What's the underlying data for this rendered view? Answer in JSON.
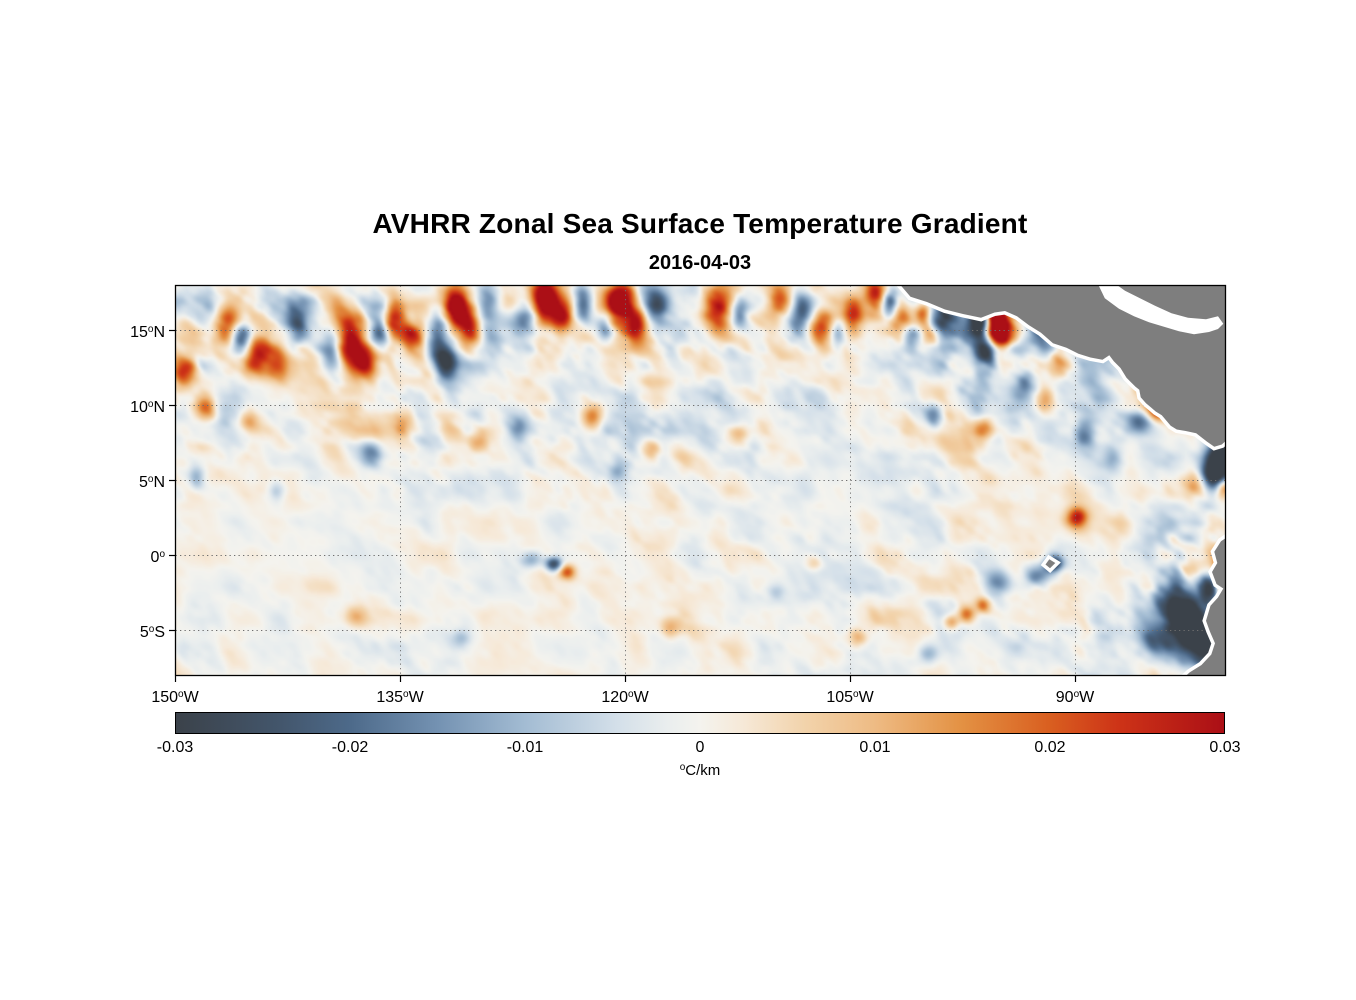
{
  "title": "AVHRR Zonal Sea Surface Temperature Gradient",
  "subtitle": "2016-04-03",
  "chart_data": {
    "type": "heatmap",
    "title": "AVHRR Zonal Sea Surface Temperature Gradient",
    "subtitle": "2016-04-03",
    "colorbar_unit_sup": "o",
    "colorbar_unit_text": "C/km",
    "value_range": [
      -0.03,
      0.03
    ],
    "colorbar_ticks": [
      "-0.03",
      "-0.02",
      "-0.01",
      "0",
      "0.01",
      "0.02",
      "0.03"
    ],
    "axes": {
      "lon_min": -150,
      "lon_max": -80,
      "lat_min": -8,
      "lat_max": 18
    },
    "x_ticks": [
      {
        "deg": "150",
        "sup": "o",
        "hem": "W",
        "lon": -150
      },
      {
        "deg": "135",
        "sup": "o",
        "hem": "W",
        "lon": -135
      },
      {
        "deg": "120",
        "sup": "o",
        "hem": "W",
        "lon": -120
      },
      {
        "deg": "105",
        "sup": "o",
        "hem": "W",
        "lon": -105
      },
      {
        "deg": "90",
        "sup": "o",
        "hem": "W",
        "lon": -90
      }
    ],
    "y_ticks": [
      {
        "deg": "15",
        "sup": "o",
        "hem": "N",
        "lat": 15
      },
      {
        "deg": "10",
        "sup": "o",
        "hem": "N",
        "lat": 10
      },
      {
        "deg": "5",
        "sup": "o",
        "hem": "N",
        "lat": 5
      },
      {
        "deg": "0",
        "sup": "o",
        "hem": "",
        "lat": 0
      },
      {
        "deg": "5",
        "sup": "o",
        "hem": "S",
        "lat": -5
      }
    ],
    "grid": true,
    "grid_color": "#6e6e6e",
    "frame_color": "#000000",
    "land_color": "#7e7e7e",
    "nodata_color": "#ffffff",
    "colormap": [
      {
        "t": 0.0,
        "c": "#3b424a"
      },
      {
        "t": 0.1,
        "c": "#43566c"
      },
      {
        "t": 0.1667,
        "c": "#4d6a8a"
      },
      {
        "t": 0.25,
        "c": "#7492b2"
      },
      {
        "t": 0.3333,
        "c": "#a3bcd3"
      },
      {
        "t": 0.42,
        "c": "#d3dfe9"
      },
      {
        "t": 0.47,
        "c": "#eaeeee"
      },
      {
        "t": 0.5,
        "c": "#f4f3ee"
      },
      {
        "t": 0.54,
        "c": "#f6e9d8"
      },
      {
        "t": 0.6,
        "c": "#f2d3ab"
      },
      {
        "t": 0.6667,
        "c": "#eebb84"
      },
      {
        "t": 0.75,
        "c": "#e39143"
      },
      {
        "t": 0.8333,
        "c": "#d95f20"
      },
      {
        "t": 0.9,
        "c": "#cd3317"
      },
      {
        "t": 1.0,
        "c": "#ab0f16"
      }
    ],
    "noise": {
      "seed": 11,
      "base_amp": 0.3,
      "band15_amp": 0.75,
      "band8_amp": 0.25,
      "value_scale": 0.022,
      "shear": 0.42
    },
    "features": [
      [
        -146.6,
        15.3,
        0.6,
        1.0,
        0.026
      ],
      [
        -145.6,
        14.4,
        0.5,
        0.9,
        -0.022
      ],
      [
        -144.6,
        13.6,
        0.7,
        1.1,
        0.03
      ],
      [
        -143.2,
        12.6,
        0.6,
        0.8,
        0.022
      ],
      [
        -141.9,
        15.6,
        0.6,
        1.0,
        -0.018
      ],
      [
        -139.5,
        13.5,
        0.5,
        0.9,
        -0.02
      ],
      [
        -138.4,
        14.3,
        0.7,
        1.2,
        0.034
      ],
      [
        -137.3,
        12.9,
        0.6,
        0.8,
        0.024
      ],
      [
        -136.4,
        14.9,
        0.5,
        0.9,
        -0.022
      ],
      [
        -135.4,
        15.9,
        0.6,
        1.0,
        0.028
      ],
      [
        -134.2,
        14.6,
        0.5,
        0.8,
        0.02
      ],
      [
        -132.4,
        14.9,
        0.6,
        1.2,
        -0.028
      ],
      [
        -131.9,
        13.0,
        0.5,
        0.9,
        -0.022
      ],
      [
        -131.3,
        16.4,
        0.6,
        1.1,
        0.038
      ],
      [
        -130.3,
        15.0,
        0.5,
        0.9,
        0.026
      ],
      [
        -129.2,
        16.9,
        0.5,
        0.9,
        -0.018
      ],
      [
        -126.6,
        16.0,
        0.5,
        0.9,
        -0.02
      ],
      [
        -125.4,
        17.2,
        0.7,
        1.0,
        0.042
      ],
      [
        -124.2,
        16.0,
        0.5,
        0.8,
        0.022
      ],
      [
        -122.9,
        16.8,
        0.5,
        0.9,
        -0.026
      ],
      [
        -121.4,
        15.3,
        0.4,
        0.8,
        -0.018
      ],
      [
        -120.4,
        17.0,
        0.7,
        1.0,
        0.04
      ],
      [
        -119.2,
        15.6,
        0.5,
        0.8,
        0.024
      ],
      [
        -117.9,
        16.9,
        0.6,
        0.9,
        -0.022
      ],
      [
        -113.9,
        16.6,
        0.7,
        1.0,
        0.03
      ],
      [
        -112.4,
        16.2,
        0.5,
        0.9,
        -0.02
      ],
      [
        -109.8,
        16.9,
        0.6,
        0.9,
        0.026
      ],
      [
        -108.4,
        16.1,
        0.5,
        0.8,
        -0.018
      ],
      [
        -107.0,
        15.3,
        0.6,
        0.9,
        0.028
      ],
      [
        -105.9,
        14.9,
        0.4,
        0.7,
        -0.016
      ],
      [
        -104.8,
        16.3,
        0.5,
        0.8,
        0.022
      ],
      [
        -103.4,
        17.4,
        0.5,
        0.8,
        0.03
      ],
      [
        -102.4,
        16.8,
        0.4,
        0.7,
        -0.02
      ],
      [
        -101.8,
        15.9,
        0.5,
        0.7,
        0.018
      ],
      [
        -100.9,
        14.6,
        0.5,
        0.7,
        -0.02
      ],
      [
        -100.2,
        16.2,
        0.4,
        0.5,
        0.025
      ],
      [
        -98.9,
        15.9,
        0.5,
        0.6,
        -0.016
      ],
      [
        -95.4,
        16.0,
        0.45,
        0.8,
        0.045
      ],
      [
        -95.1,
        14.6,
        0.5,
        0.9,
        0.042
      ],
      [
        -96.5,
        15.6,
        0.5,
        0.9,
        -0.035
      ],
      [
        -95.9,
        13.5,
        0.6,
        0.7,
        -0.022
      ],
      [
        -94.2,
        15.0,
        0.5,
        0.6,
        0.02
      ],
      [
        -149.3,
        12.4,
        0.6,
        0.8,
        0.024
      ],
      [
        -148.0,
        10.0,
        0.5,
        0.7,
        0.02
      ],
      [
        -145.2,
        9.0,
        0.5,
        0.6,
        0.014
      ],
      [
        -134.8,
        8.8,
        0.5,
        0.6,
        0.016
      ],
      [
        -129.8,
        7.6,
        0.5,
        0.5,
        0.014
      ],
      [
        -127.2,
        8.6,
        0.5,
        0.6,
        -0.014
      ],
      [
        -122.2,
        9.3,
        0.5,
        0.6,
        0.018
      ],
      [
        -120.6,
        5.6,
        0.5,
        0.5,
        -0.012
      ],
      [
        -118.3,
        7.2,
        0.5,
        0.5,
        0.014
      ],
      [
        -112.5,
        8.0,
        0.5,
        0.5,
        0.012
      ],
      [
        -99.5,
        9.3,
        0.5,
        0.6,
        -0.016
      ],
      [
        -96.1,
        8.5,
        0.5,
        0.6,
        0.022
      ],
      [
        -92.0,
        10.5,
        0.5,
        0.6,
        0.016
      ],
      [
        -91.2,
        12.9,
        0.5,
        0.7,
        0.02
      ],
      [
        -93.5,
        11.5,
        0.5,
        0.6,
        -0.014
      ],
      [
        -89.4,
        8.2,
        0.5,
        0.7,
        -0.018
      ],
      [
        -87.5,
        6.5,
        0.5,
        0.6,
        -0.012
      ],
      [
        -136.9,
        7.0,
        0.5,
        0.5,
        -0.012
      ],
      [
        -148.6,
        5.2,
        0.4,
        0.6,
        -0.014
      ],
      [
        -143.3,
        4.3,
        0.4,
        0.5,
        -0.01
      ],
      [
        -84.6,
        9.8,
        0.5,
        0.6,
        0.028
      ],
      [
        -85.8,
        9.0,
        0.6,
        0.5,
        -0.018
      ],
      [
        -80.4,
        6.4,
        0.7,
        0.9,
        -0.04
      ],
      [
        -80.9,
        5.3,
        0.6,
        0.7,
        -0.03
      ],
      [
        -80.3,
        7.6,
        0.4,
        0.5,
        -0.025
      ],
      [
        -82.0,
        4.9,
        0.6,
        0.6,
        0.018
      ],
      [
        -124.8,
        -0.55,
        0.4,
        0.35,
        -0.028
      ],
      [
        -123.9,
        -1.05,
        0.4,
        0.35,
        0.022
      ],
      [
        -126.3,
        -0.3,
        0.5,
        0.4,
        -0.012
      ],
      [
        -91.5,
        -0.55,
        0.45,
        0.4,
        -0.03
      ],
      [
        -92.6,
        -1.4,
        0.6,
        0.5,
        -0.018
      ],
      [
        -95.3,
        -1.8,
        0.7,
        0.6,
        -0.02
      ],
      [
        -89.9,
        2.6,
        0.5,
        0.5,
        0.026
      ],
      [
        -97.3,
        -3.9,
        0.4,
        0.4,
        0.02
      ],
      [
        -96.2,
        -3.3,
        0.35,
        0.35,
        0.018
      ],
      [
        -98.3,
        -4.4,
        0.35,
        0.35,
        0.016
      ],
      [
        -82.6,
        -4.6,
        1.3,
        1.2,
        -0.038
      ],
      [
        -81.3,
        -6.3,
        0.9,
        1.0,
        -0.034
      ],
      [
        -83.8,
        -3.1,
        1.0,
        0.9,
        -0.02
      ],
      [
        -81.0,
        -2.2,
        0.8,
        0.8,
        -0.022
      ],
      [
        -84.9,
        -5.6,
        0.8,
        0.8,
        -0.016
      ],
      [
        -80.15,
        -2.9,
        0.35,
        1.1,
        0.045
      ],
      [
        -79.95,
        -4.3,
        0.3,
        0.5,
        0.05
      ],
      [
        -80.3,
        -0.9,
        0.3,
        0.6,
        0.03
      ],
      [
        -80.15,
        4.6,
        0.35,
        0.45,
        0.022
      ],
      [
        -138.0,
        -4.0,
        0.6,
        0.5,
        0.01
      ],
      [
        -131.0,
        -5.5,
        0.5,
        0.5,
        -0.01
      ],
      [
        -117.0,
        -4.8,
        0.5,
        0.5,
        0.012
      ],
      [
        -110.0,
        -2.5,
        0.5,
        0.5,
        -0.01
      ],
      [
        -104.5,
        -5.4,
        0.5,
        0.5,
        0.012
      ],
      [
        -99.8,
        -6.5,
        0.5,
        0.5,
        -0.012
      ],
      [
        -107.5,
        -0.5,
        0.4,
        0.4,
        0.01
      ]
    ],
    "land_polygons": [
      [
        [
          -101.9,
          18.3
        ],
        [
          -101.0,
          17.25
        ],
        [
          -99.9,
          16.9
        ],
        [
          -98.7,
          16.4
        ],
        [
          -97.5,
          16.1
        ],
        [
          -96.3,
          15.85
        ],
        [
          -95.4,
          16.2
        ],
        [
          -94.7,
          16.3
        ],
        [
          -93.9,
          15.95
        ],
        [
          -93.1,
          15.35
        ],
        [
          -92.3,
          14.85
        ],
        [
          -91.5,
          14.15
        ],
        [
          -90.6,
          13.85
        ],
        [
          -89.8,
          13.45
        ],
        [
          -89.0,
          13.2
        ],
        [
          -88.2,
          13.05
        ],
        [
          -87.75,
          13.35
        ],
        [
          -87.45,
          12.95
        ],
        [
          -87.0,
          12.5
        ],
        [
          -86.6,
          11.85
        ],
        [
          -86.0,
          11.25
        ],
        [
          -85.75,
          11.05
        ],
        [
          -85.65,
          10.55
        ],
        [
          -85.3,
          10.15
        ],
        [
          -85.0,
          9.9
        ],
        [
          -84.65,
          9.6
        ],
        [
          -84.25,
          9.35
        ],
        [
          -83.65,
          8.65
        ],
        [
          -83.25,
          8.4
        ],
        [
          -82.65,
          8.3
        ],
        [
          -81.95,
          8.15
        ],
        [
          -81.25,
          7.6
        ],
        [
          -80.75,
          7.25
        ],
        [
          -80.25,
          7.4
        ],
        [
          -79.7,
          7.9
        ],
        [
          -79.7,
          18.3
        ]
      ],
      [
        [
          -79.7,
          1.35
        ],
        [
          -80.3,
          0.95
        ],
        [
          -80.75,
          0.25
        ],
        [
          -80.55,
          -0.5
        ],
        [
          -80.9,
          -1.1
        ],
        [
          -80.6,
          -1.9
        ],
        [
          -80.15,
          -2.2
        ],
        [
          -80.5,
          -2.8
        ],
        [
          -81.0,
          -3.35
        ],
        [
          -81.3,
          -4.35
        ],
        [
          -81.05,
          -5.05
        ],
        [
          -80.7,
          -5.85
        ],
        [
          -80.95,
          -6.6
        ],
        [
          -81.6,
          -7.3
        ],
        [
          -82.4,
          -7.8
        ],
        [
          -82.95,
          -8.3
        ],
        [
          -79.7,
          -8.3
        ]
      ],
      [
        [
          -91.75,
          -0.25
        ],
        [
          -91.35,
          -0.5
        ],
        [
          -91.7,
          -0.85
        ],
        [
          -92.0,
          -0.6
        ]
      ]
    ],
    "nodata_polygons": [
      [
        [
          -88.6,
          18.3
        ],
        [
          -88.05,
          17.15
        ],
        [
          -87.1,
          16.45
        ],
        [
          -86.1,
          15.95
        ],
        [
          -85.1,
          15.55
        ],
        [
          -84.1,
          15.25
        ],
        [
          -83.1,
          14.95
        ],
        [
          -82.1,
          14.75
        ],
        [
          -81.1,
          14.9
        ],
        [
          -80.5,
          15.1
        ],
        [
          -80.15,
          15.45
        ],
        [
          -80.5,
          15.95
        ],
        [
          -81.3,
          15.75
        ],
        [
          -82.5,
          15.85
        ],
        [
          -83.6,
          16.15
        ],
        [
          -84.7,
          16.65
        ],
        [
          -85.7,
          17.15
        ],
        [
          -86.7,
          17.65
        ],
        [
          -87.6,
          18.3
        ]
      ]
    ]
  }
}
